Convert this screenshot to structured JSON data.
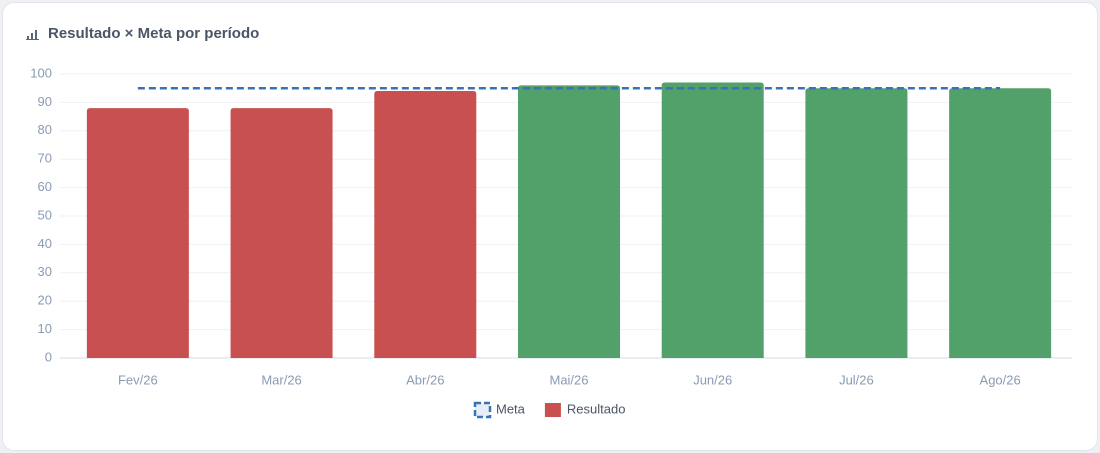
{
  "chart_data": {
    "type": "bar",
    "title": "Resultado × Meta por período",
    "categories": [
      "Fev/26",
      "Mar/26",
      "Abr/26",
      "Mai/26",
      "Jun/26",
      "Jul/26",
      "Ago/26"
    ],
    "series": [
      {
        "name": "Meta",
        "type": "line",
        "dashed": true,
        "color": "#3a72b8",
        "values": [
          95,
          95,
          95,
          95,
          95,
          95,
          95
        ]
      },
      {
        "name": "Resultado",
        "type": "bar",
        "color": "#c85050",
        "colors": [
          "#c85050",
          "#c85050",
          "#c85050",
          "#52a06a",
          "#52a06a",
          "#52a06a",
          "#52a06a"
        ],
        "values": [
          88,
          88,
          94,
          96,
          97,
          95,
          95
        ]
      }
    ],
    "ylim": [
      0,
      100
    ],
    "yticks": [
      0,
      10,
      20,
      30,
      40,
      50,
      60,
      70,
      80,
      90,
      100
    ],
    "grid": true
  }
}
